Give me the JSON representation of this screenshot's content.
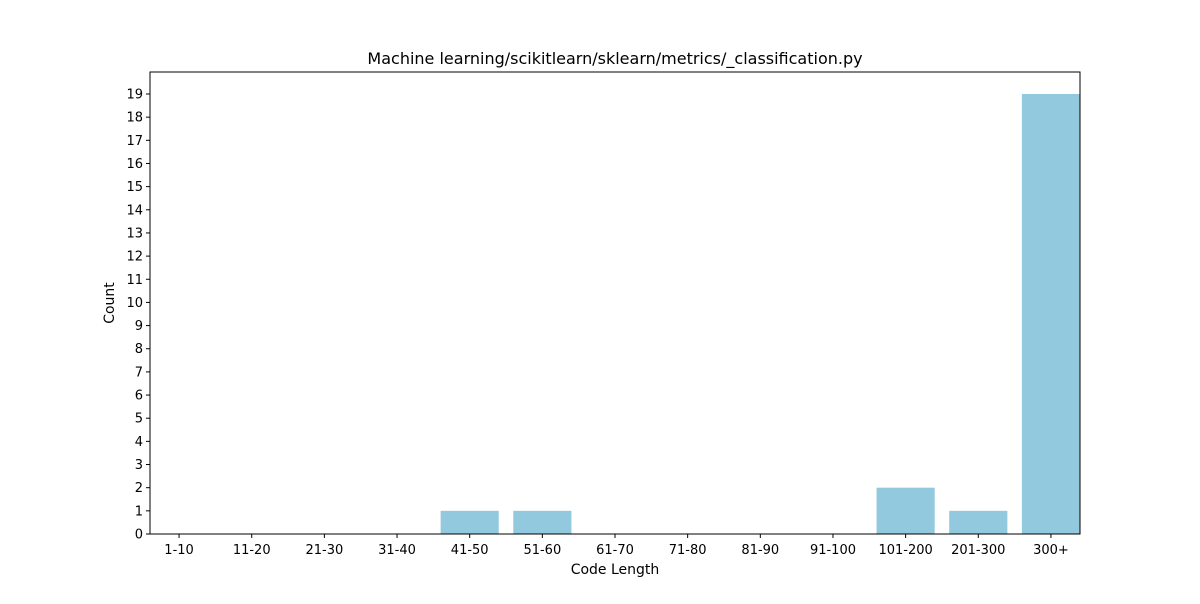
{
  "chart_data": {
    "type": "bar",
    "title": "Machine learning/scikitlearn/sklearn/metrics/_classification.py",
    "xlabel": "Code Length",
    "ylabel": "Count",
    "categories": [
      "1-10",
      "11-20",
      "21-30",
      "31-40",
      "41-50",
      "51-60",
      "61-70",
      "71-80",
      "81-90",
      "91-100",
      "101-200",
      "201-300",
      "300+"
    ],
    "values": [
      0,
      0,
      0,
      0,
      1,
      1,
      0,
      0,
      0,
      0,
      2,
      1,
      19
    ],
    "ylim": [
      0,
      19.95
    ],
    "yticks": [
      0,
      1,
      2,
      3,
      4,
      5,
      6,
      7,
      8,
      9,
      10,
      11,
      12,
      13,
      14,
      15,
      16,
      17,
      18,
      19
    ],
    "bar_color": "#92c9df",
    "grid": false,
    "legend": "none"
  }
}
